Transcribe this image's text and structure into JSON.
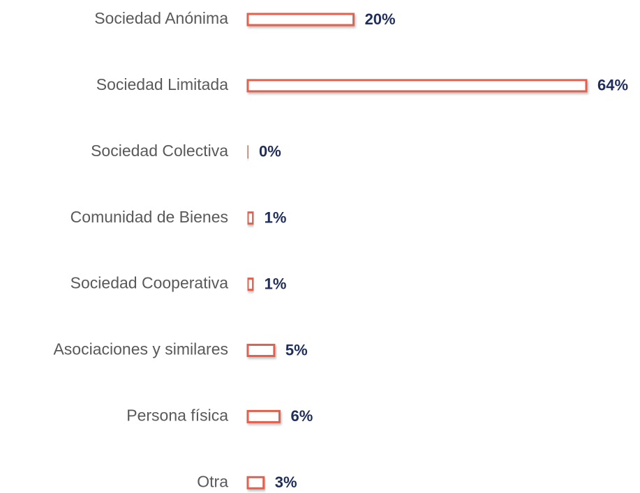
{
  "chart_data": {
    "type": "bar",
    "orientation": "horizontal",
    "categories": [
      "Sociedad Anónima",
      "Sociedad Limitada",
      "Sociedad Colectiva",
      "Comunidad de Bienes",
      "Sociedad Cooperativa",
      "Asociaciones y similares",
      "Persona física",
      "Otra"
    ],
    "values": [
      20,
      64,
      0,
      1,
      1,
      5,
      6,
      3
    ],
    "value_labels": [
      "20%",
      "64%",
      "0%",
      "1%",
      "1%",
      "5%",
      "6%",
      "3%"
    ],
    "color": "#e55f4d"
  }
}
